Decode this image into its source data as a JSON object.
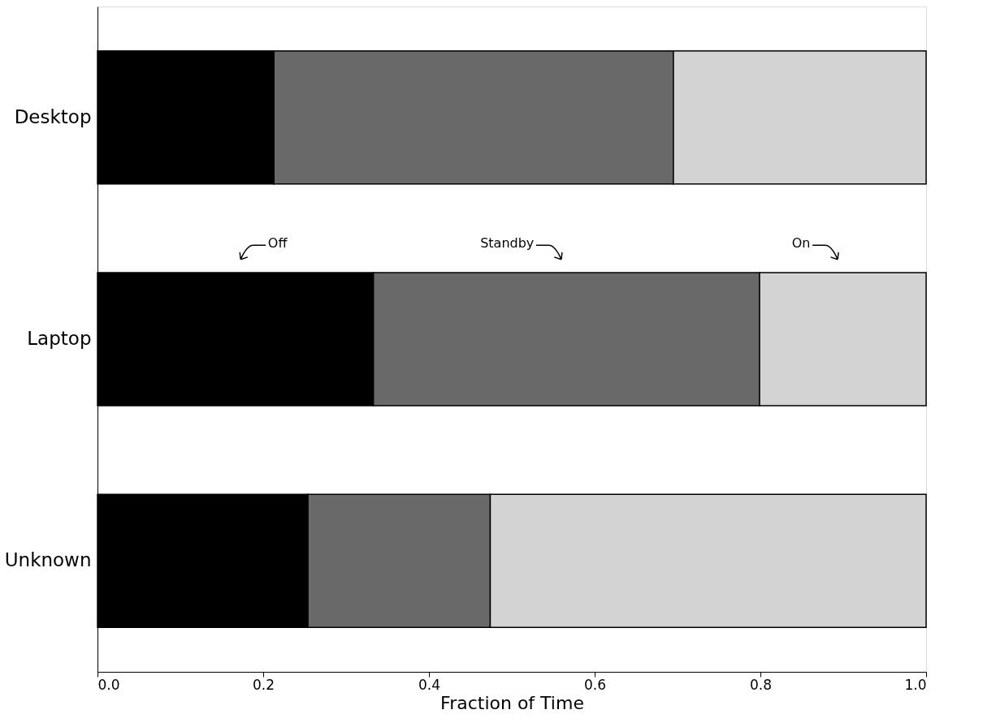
{
  "chart_data": {
    "type": "bar",
    "orientation": "horizontal",
    "stacked": true,
    "xlabel": "Fraction of Time",
    "categories": [
      "Desktop",
      "Laptop",
      "Unknown"
    ],
    "series": [
      {
        "name": "Off",
        "color": "#000000",
        "values": [
          0.213,
          0.333,
          0.254
        ]
      },
      {
        "name": "Standby",
        "color": "#696969",
        "values": [
          0.482,
          0.466,
          0.22
        ]
      },
      {
        "name": "On",
        "color": "#d3d3d3",
        "values": [
          0.305,
          0.201,
          0.526
        ]
      }
    ],
    "xlim": [
      0,
      1
    ],
    "xticks": [
      {
        "value": 0,
        "label": "0.0"
      },
      {
        "value": 0.2,
        "label": "0.2"
      },
      {
        "value": 0.4,
        "label": "0.4"
      },
      {
        "value": 0.6,
        "label": "0.6"
      },
      {
        "value": 0.8,
        "label": "0.8"
      },
      {
        "value": 1,
        "label": "1.0"
      }
    ],
    "grid": false,
    "legend": "top"
  }
}
